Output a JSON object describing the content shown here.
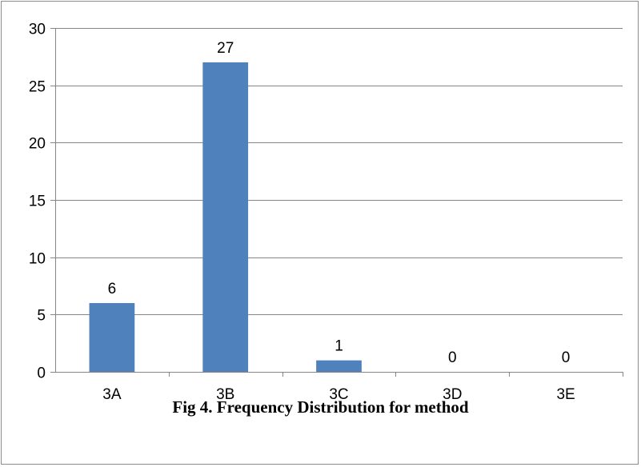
{
  "caption": "Fig 4. Frequency Distribution for method",
  "colors": {
    "bar": "#4f81bd",
    "grid": "#868686",
    "axis": "#868686"
  },
  "chart_data": {
    "type": "bar",
    "categories": [
      "3A",
      "3B",
      "3C",
      "3D",
      "3E"
    ],
    "values": [
      6,
      27,
      1,
      0,
      0
    ],
    "data_labels": [
      "6",
      "27",
      "1",
      "0",
      "0"
    ],
    "title": "",
    "xlabel": "",
    "ylabel": "",
    "ylim": [
      0,
      30
    ],
    "yticks": [
      0,
      5,
      10,
      15,
      20,
      25,
      30
    ],
    "grid": true,
    "legend": "none"
  }
}
